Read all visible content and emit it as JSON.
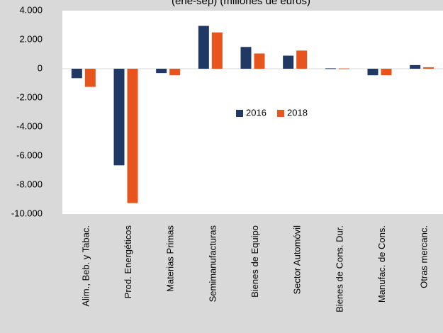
{
  "chart_data": {
    "type": "bar",
    "title": "(ene-sep) (millones de euros)",
    "categories": [
      "Alim., Beb. y Tabac.",
      "Prod. Energéticos",
      "Materias Primas",
      "Semimanufacturas",
      "Bienes de Equipo",
      "Sector Automóvil",
      "Bienes de Cons. Dur.",
      "Manufac. de Cons.",
      "Otras mercanc."
    ],
    "series": [
      {
        "name": "2016",
        "color": "#1f3864",
        "values": [
          -650,
          -6650,
          -300,
          2950,
          1500,
          900,
          30,
          -450,
          250
        ]
      },
      {
        "name": "2018",
        "color": "#e8541e",
        "values": [
          -1250,
          -9250,
          -450,
          2500,
          1050,
          1250,
          20,
          -450,
          100
        ]
      }
    ],
    "ylim": [
      -10000,
      4000
    ],
    "yticks": [
      {
        "value": 4000,
        "label": "4.000"
      },
      {
        "value": 2000,
        "label": "2.000"
      },
      0,
      {
        "value": -2000,
        "label": "-2.000"
      },
      {
        "value": -4000,
        "label": "-4.000"
      },
      {
        "value": -6000,
        "label": "-6.000"
      },
      {
        "value": -8000,
        "label": "-8.000"
      },
      {
        "value": -10000,
        "label": "-10.000"
      }
    ],
    "legend": "center"
  }
}
